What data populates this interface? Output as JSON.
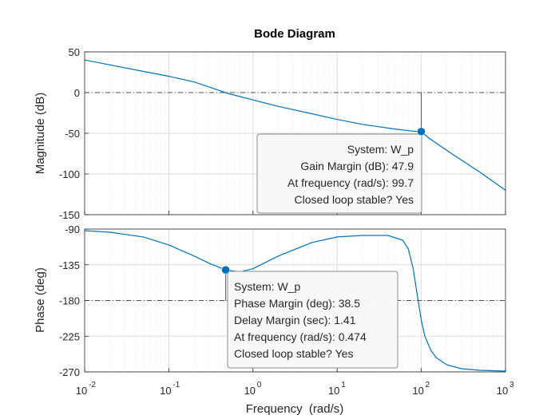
{
  "chart_data": {
    "type": "line",
    "title": "Bode Diagram",
    "xlabel": "Frequency  (rad/s)",
    "x_scale": "log",
    "xlim": [
      0.01,
      1000
    ],
    "x_ticks": [
      {
        "value": 0.01,
        "base": "10",
        "exp": "-2"
      },
      {
        "value": 0.1,
        "base": "10",
        "exp": "-1"
      },
      {
        "value": 1,
        "base": "10",
        "exp": "0"
      },
      {
        "value": 10,
        "base": "10",
        "exp": "1"
      },
      {
        "value": 100,
        "base": "10",
        "exp": "2"
      },
      {
        "value": 1000,
        "base": "10",
        "exp": "3"
      }
    ],
    "grid": true,
    "color": "#0072BD",
    "panels": [
      {
        "name": "magnitude",
        "ylabel": "Magnitude (dB)",
        "ylim": [
          -150,
          50
        ],
        "yticks": [
          "50",
          "0",
          "-50",
          "-100",
          "-150"
        ],
        "reference_y": 0,
        "x": [
          0.01,
          0.02,
          0.05,
          0.1,
          0.2,
          0.3,
          0.5,
          1,
          2,
          5,
          10,
          20,
          50,
          80,
          99.7,
          120,
          200,
          500,
          1000
        ],
        "y": [
          40,
          34,
          26,
          20,
          13,
          7,
          -1,
          -9,
          -17,
          -26,
          -33,
          -39,
          -45,
          -47.5,
          -47.9,
          -55,
          -71,
          -98,
          -120
        ],
        "marker": {
          "x": 99.7,
          "y": -47.9
        },
        "datatip": [
          "System: W_p",
          "Gain Margin (dB): 47.9",
          "At frequency (rad/s): 99.7",
          "Closed loop stable? Yes"
        ]
      },
      {
        "name": "phase",
        "ylabel": "Phase (deg)",
        "ylim": [
          -270,
          -90
        ],
        "yticks": [
          "-90",
          "-135",
          "-180",
          "-225",
          "-270"
        ],
        "reference_y": -180,
        "x": [
          0.01,
          0.02,
          0.05,
          0.1,
          0.2,
          0.3,
          0.474,
          0.7,
          1,
          2,
          5,
          10,
          20,
          40,
          60,
          70,
          80,
          90,
          100,
          110,
          130,
          150,
          200,
          300,
          500,
          1000
        ],
        "y": [
          -92,
          -94,
          -100,
          -110,
          -124,
          -133,
          -141.5,
          -144,
          -140,
          -124,
          -107,
          -100,
          -98,
          -98,
          -104,
          -115,
          -140,
          -175,
          -205,
          -225,
          -243,
          -252,
          -261,
          -266,
          -268,
          -269
        ],
        "marker": {
          "x": 0.474,
          "y": -141.5
        },
        "datatip": [
          "System: W_p",
          "Phase Margin (deg): 38.5",
          "Delay Margin (sec): 1.41",
          "At frequency (rad/s): 0.474",
          "Closed loop stable? Yes"
        ]
      }
    ]
  }
}
